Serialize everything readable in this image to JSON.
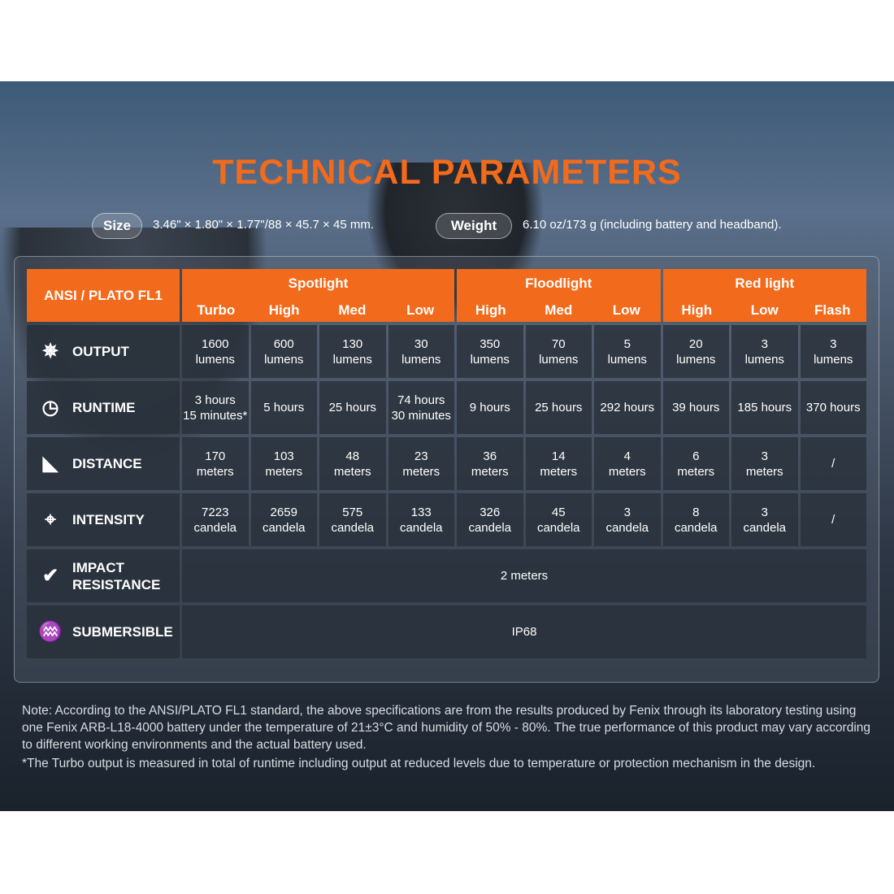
{
  "title": "TECHNICAL PARAMETERS",
  "size": {
    "label": "Size",
    "value": "3.46\" × 1.80\" × 1.77\"/88 × 45.7 × 45 mm."
  },
  "weight": {
    "label": "Weight",
    "value": "6.10 oz/173 g (including battery and headband)."
  },
  "table": {
    "corner": "ANSI / PLATO FL1",
    "groups": [
      {
        "name": "Spotlight",
        "modes": [
          "Turbo",
          "High",
          "Med",
          "Low"
        ]
      },
      {
        "name": "Floodlight",
        "modes": [
          "High",
          "Med",
          "Low"
        ]
      },
      {
        "name": "Red light",
        "modes": [
          "High",
          "Low",
          "Flash"
        ]
      }
    ],
    "rows": [
      {
        "label": "OUTPUT",
        "icon": "light-burst-icon",
        "values": [
          "1600\nlumens",
          "600\nlumens",
          "130\nlumens",
          "30\nlumens",
          "350\nlumens",
          "70\nlumens",
          "5\nlumens",
          "20\nlumens",
          "3\nlumens",
          "3\nlumens"
        ]
      },
      {
        "label": "RUNTIME",
        "icon": "clock-icon",
        "values": [
          "3 hours\n15 minutes*",
          "5 hours",
          "25 hours",
          "74 hours\n30 minutes",
          "9 hours",
          "25 hours",
          "292 hours",
          "39 hours",
          "185 hours",
          "370 hours"
        ]
      },
      {
        "label": "DISTANCE",
        "icon": "beam-distance-icon",
        "values": [
          "170\nmeters",
          "103\nmeters",
          "48\nmeters",
          "23\nmeters",
          "36\nmeters",
          "14\nmeters",
          "4\nmeters",
          "6\nmeters",
          "3\nmeters",
          "/"
        ]
      },
      {
        "label": "INTENSITY",
        "icon": "target-icon",
        "values": [
          "7223\ncandela",
          "2659\ncandela",
          "575\ncandela",
          "133\ncandela",
          "326\ncandela",
          "45\ncandela",
          "3\ncandela",
          "8\ncandela",
          "3\ncandela",
          "/"
        ]
      }
    ],
    "impact": {
      "label": "IMPACT\nRESISTANCE",
      "icon": "impact-check-icon",
      "value": "2 meters"
    },
    "submersible": {
      "label": "SUBMERSIBLE",
      "icon": "water-icon",
      "value": "IP68"
    }
  },
  "note": [
    "Note: According to the ANSI/PLATO FL1 standard, the above specifications are from the results produced by Fenix through its laboratory testing using one Fenix ARB-L18-4000 battery under the temperature of 21±3°C and humidity of 50% - 80%. The true performance of this product may vary according to different working environments and the actual battery used.",
    "*The Turbo output is measured in total of runtime including output at reduced levels due to temperature or protection mechanism in the design."
  ],
  "colors": {
    "accent": "#f26a1b"
  }
}
